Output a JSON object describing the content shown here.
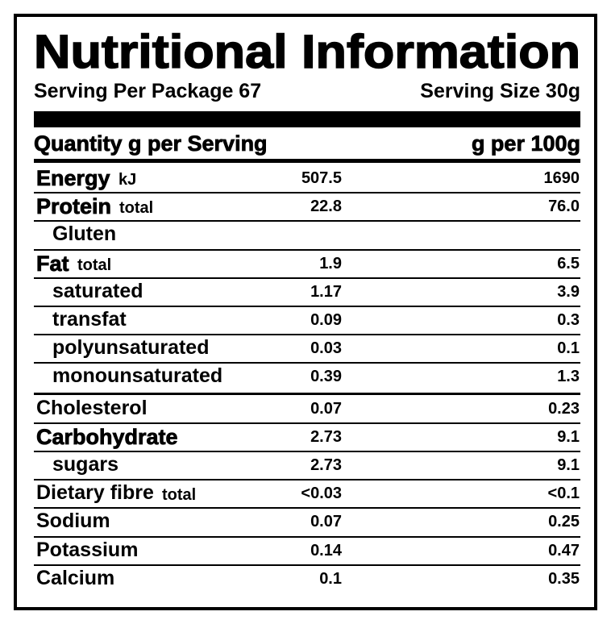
{
  "title": "Nutritional Information",
  "serving_per_package": "Serving Per Package 67",
  "serving_size": "Serving Size 30g",
  "table": {
    "header": {
      "quantity": "Quantity g per Serving",
      "per_100g": "g per 100g"
    },
    "rows": [
      {
        "name": "Energy",
        "qualifier": "kJ",
        "per_serving": "507.5",
        "per_100g": "1690"
      },
      {
        "name": "Protein",
        "qualifier": "total",
        "per_serving": "22.8",
        "per_100g": "76.0"
      },
      {
        "name": "Gluten"
      },
      {
        "name": "Fat",
        "qualifier": "total",
        "per_serving": "1.9",
        "per_100g": "6.5"
      },
      {
        "name": "saturated",
        "per_serving": "1.17",
        "per_100g": "3.9"
      },
      {
        "name": "transfat",
        "per_serving": "0.09",
        "per_100g": "0.3"
      },
      {
        "name": "polyunsaturated",
        "per_serving": "0.03",
        "per_100g": "0.1"
      },
      {
        "name": "monounsaturated",
        "per_serving": "0.39",
        "per_100g": "1.3"
      },
      {
        "name": "Cholesterol",
        "per_serving": "0.07",
        "per_100g": "0.23"
      },
      {
        "name": "Carbohydrate",
        "per_serving": "2.73",
        "per_100g": "9.1"
      },
      {
        "name": "sugars",
        "per_serving": "2.73",
        "per_100g": "9.1"
      },
      {
        "name": "Dietary fibre",
        "qualifier": "total",
        "per_serving": "<0.03",
        "per_100g": "<0.1"
      },
      {
        "name": "Sodium",
        "per_serving": "0.07",
        "per_100g": "0.25"
      },
      {
        "name": "Potassium",
        "per_serving": "0.14",
        "per_100g": "0.47"
      },
      {
        "name": "Calcium",
        "per_serving": "0.1",
        "per_100g": "0.35"
      }
    ]
  }
}
